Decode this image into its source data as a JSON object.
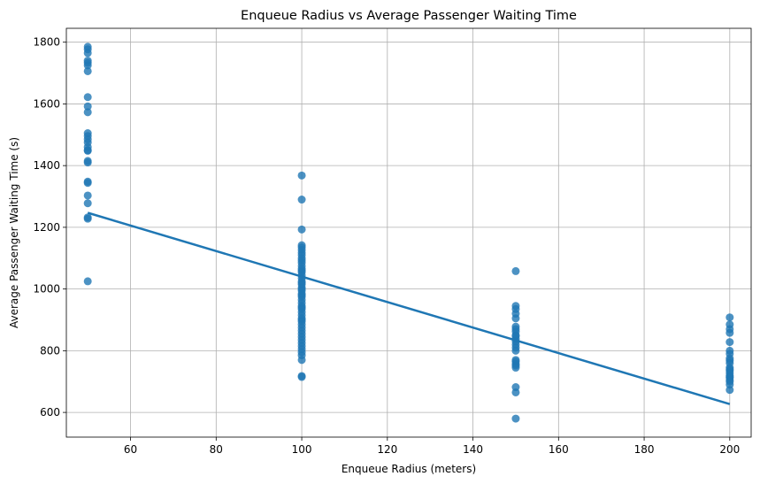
{
  "chart_data": {
    "type": "scatter",
    "title": "Enqueue Radius vs Average Passenger Waiting Time",
    "xlabel": "Enqueue Radius (meters)",
    "ylabel": "Average Passenger Waiting Time (s)",
    "xlim": [
      45,
      205
    ],
    "ylim": [
      520,
      1845
    ],
    "x_ticks": [
      60,
      80,
      100,
      120,
      140,
      160,
      180,
      200
    ],
    "y_ticks": [
      600,
      800,
      1000,
      1200,
      1400,
      1600,
      1800
    ],
    "grid": true,
    "colors": {
      "points": "#1f77b4",
      "line": "#1f77b4",
      "grid": "#b0b0b0"
    },
    "series": [
      {
        "kind": "points",
        "x": [
          50,
          50,
          50,
          50,
          50,
          50,
          50,
          50,
          50,
          50,
          50,
          50,
          50,
          50,
          50,
          50,
          50,
          50,
          50,
          50,
          50,
          50,
          50,
          50,
          50,
          50,
          100,
          100,
          100,
          100,
          100,
          100,
          100,
          100,
          100,
          100,
          100,
          100,
          100,
          100,
          100,
          100,
          100,
          100,
          100,
          100,
          100,
          100,
          100,
          100,
          100,
          100,
          100,
          100,
          100,
          100,
          100,
          100,
          100,
          100,
          100,
          100,
          100,
          100,
          100,
          100,
          100,
          100,
          100,
          100,
          100,
          100,
          100,
          100,
          100,
          100,
          150,
          150,
          150,
          150,
          150,
          150,
          150,
          150,
          150,
          150,
          150,
          150,
          150,
          150,
          150,
          150,
          150,
          150,
          150,
          150,
          150,
          150,
          150,
          200,
          200,
          200,
          200,
          200,
          200,
          200,
          200,
          200,
          200,
          200,
          200,
          200,
          200,
          200,
          200,
          200,
          200,
          200,
          200,
          200
        ],
        "y": [
          1785,
          1777,
          1765,
          1740,
          1733,
          1725,
          1706,
          1622,
          1592,
          1573,
          1505,
          1496,
          1485,
          1475,
          1460,
          1448,
          1415,
          1410,
          1348,
          1344,
          1303,
          1278,
          1232,
          1228,
          1025,
          1450,
          1368,
          1290,
          1193,
          1142,
          1135,
          1127,
          1118,
          1110,
          1100,
          1093,
          1085,
          1075,
          1066,
          1055,
          1045,
          1035,
          1025,
          1015,
          1005,
          995,
          985,
          975,
          965,
          955,
          945,
          935,
          925,
          915,
          905,
          895,
          885,
          875,
          865,
          855,
          845,
          835,
          825,
          815,
          805,
          795,
          785,
          770,
          718,
          715,
          1000,
          1020,
          1060,
          980,
          940,
          900,
          1058,
          945,
          935,
          920,
          905,
          878,
          870,
          862,
          848,
          838,
          830,
          820,
          810,
          770,
          765,
          757,
          752,
          745,
          682,
          665,
          580,
          850,
          800,
          908,
          885,
          870,
          858,
          828,
          800,
          790,
          775,
          768,
          760,
          745,
          735,
          728,
          720,
          715,
          712,
          705,
          700,
          690,
          673,
          740
        ]
      },
      {
        "kind": "regression-line",
        "x": [
          50,
          200
        ],
        "y": [
          1247,
          627
        ]
      }
    ]
  }
}
